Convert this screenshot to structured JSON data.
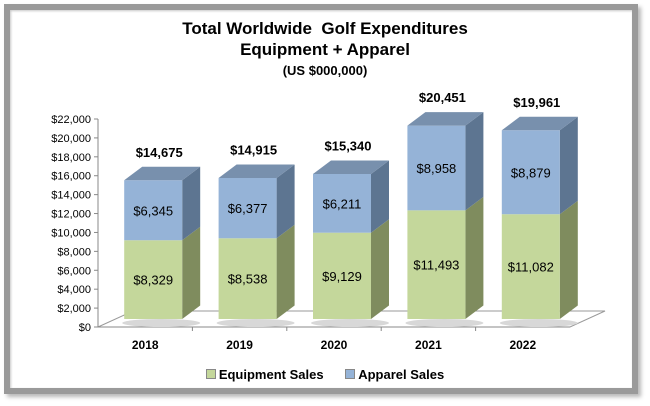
{
  "chart_data": {
    "type": "bar",
    "stacked": true,
    "three_d": true,
    "title": "Total Worldwide  Golf Expenditures",
    "subtitle": "Equipment + Apparel",
    "units": "(US $000,000)",
    "categories": [
      "2018",
      "2019",
      "2020",
      "2021",
      "2022"
    ],
    "series": [
      {
        "name": "Equipment Sales",
        "color": "#c4d79b",
        "side_color": "#7f8c5e",
        "values": [
          8329,
          8538,
          9129,
          11493,
          11082
        ],
        "labels": [
          "$8,329",
          "$8,538",
          "$9,129",
          "$11,493",
          "$11,082"
        ]
      },
      {
        "name": "Apparel Sales",
        "color": "#95b3d7",
        "side_color": "#5d7591",
        "values": [
          6345,
          6377,
          6211,
          8958,
          8879
        ],
        "labels": [
          "$6,345",
          "$6,377",
          "$6,211",
          "$8,958",
          "$8,879"
        ]
      }
    ],
    "totals": [
      14675,
      14915,
      15340,
      20451,
      19961
    ],
    "total_labels": [
      "$14,675",
      "$14,915",
      "$15,340",
      "$20,451",
      "$19,961"
    ],
    "ylim": [
      0,
      22000
    ],
    "y_ticks": [
      0,
      2000,
      4000,
      6000,
      8000,
      10000,
      12000,
      14000,
      16000,
      18000,
      20000,
      22000
    ],
    "y_tick_labels": [
      "$0",
      "$2,000",
      "$4,000",
      "$6,000",
      "$8,000",
      "$10,000",
      "$12,000",
      "$14,000",
      "$16,000",
      "$18,000",
      "$20,000",
      "$22,000"
    ],
    "xlabel": "",
    "ylabel": "",
    "grid": false,
    "legend_position": "bottom"
  }
}
